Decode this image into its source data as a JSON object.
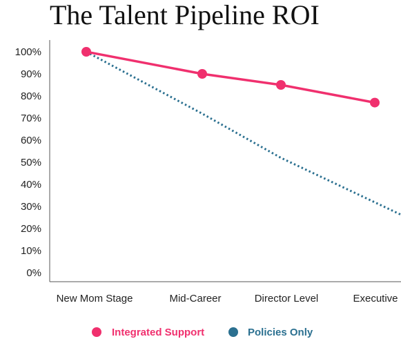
{
  "chart_data": {
    "type": "line",
    "title": "The Talent Pipeline ROI",
    "xlabel": "",
    "ylabel": "",
    "categories": [
      "New Mom Stage",
      "Mid-Career",
      "Director Level",
      "Executive"
    ],
    "y_ticks": [
      "0%",
      "10%",
      "20%",
      "30%",
      "40%",
      "50%",
      "60%",
      "70%",
      "80%",
      "90%",
      "100%"
    ],
    "ylim": [
      0,
      100
    ],
    "grid": false,
    "legend_position": "bottom",
    "series": [
      {
        "name": "Integrated Support",
        "values": [
          100,
          90,
          85,
          77
        ],
        "color": "#f0306e",
        "style": "solid-markers"
      },
      {
        "name": "Policies Only",
        "values": [
          100,
          72,
          52,
          25
        ],
        "color": "#2b7090",
        "style": "dotted"
      }
    ]
  }
}
